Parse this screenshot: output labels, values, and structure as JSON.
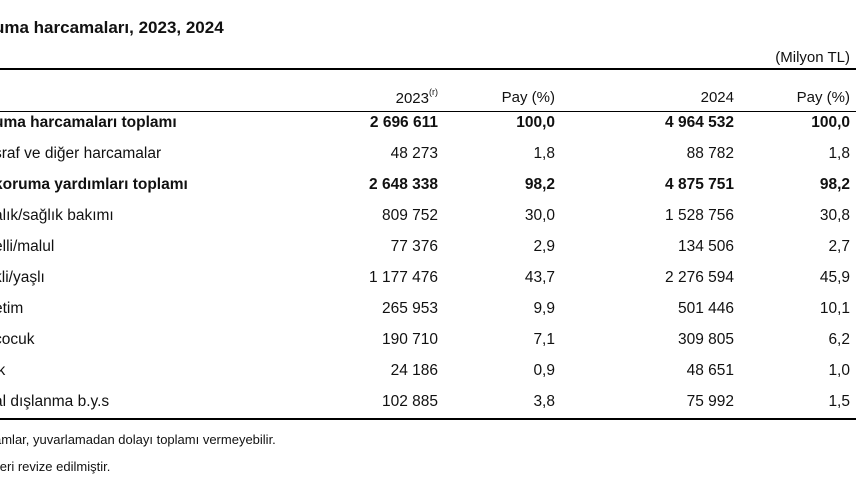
{
  "title": "uma harcamaları, 2023, 2024",
  "unit": "(Milyon TL)",
  "headers": {
    "y2023": "2023",
    "y2023_note": "(r)",
    "pay1": "Pay (%)",
    "y2024": "2024",
    "pay2": "Pay (%)"
  },
  "rows": [
    {
      "label": "uma harcamaları toplamı",
      "v2023": "2 696 611",
      "p2023": "100,0",
      "v2024": "4 964 532",
      "p2024": "100,0",
      "bold": true
    },
    {
      "label": "sraf ve diğer harcamalar",
      "v2023": "48 273",
      "p2023": "1,8",
      "v2024": "88 782",
      "p2024": "1,8",
      "bold": false
    },
    {
      "label": "koruma yardımları toplamı",
      "v2023": "2 648 338",
      "p2023": "98,2",
      "v2024": "4 875 751",
      "p2024": "98,2",
      "bold": true
    },
    {
      "label": "alık/sağlık bakımı",
      "v2023": "809 752",
      "p2023": "30,0",
      "v2024": "1 528 756",
      "p2024": "30,8",
      "bold": false
    },
    {
      "label": "elli/malul",
      "v2023": "77 376",
      "p2023": "2,9",
      "v2024": "134 506",
      "p2024": "2,7",
      "bold": false
    },
    {
      "label": "kli/yaşlı",
      "v2023": "1 177 476",
      "p2023": "43,7",
      "v2024": "2 276 594",
      "p2024": "45,9",
      "bold": false
    },
    {
      "label": "etim",
      "v2023": "265 953",
      "p2023": "9,9",
      "v2024": "501 446",
      "p2024": "10,1",
      "bold": false
    },
    {
      "label": "çocuk",
      "v2023": "190 710",
      "p2023": "7,1",
      "v2024": "309 805",
      "p2024": "6,2",
      "bold": false
    },
    {
      "label": "ik",
      "v2023": "24 186",
      "p2023": "0,9",
      "v2024": "48 651",
      "p2024": "1,0",
      "bold": false
    },
    {
      "label": "al dışlanma b.y.s",
      "v2023": "102 885",
      "p2023": "3,8",
      "v2024": "75 992",
      "p2024": "1,5",
      "bold": false
    }
  ],
  "notes": [
    "amlar, yuvarlamadan dolayı toplamı vermeyebilir.",
    "ileri revize edilmiştir."
  ]
}
